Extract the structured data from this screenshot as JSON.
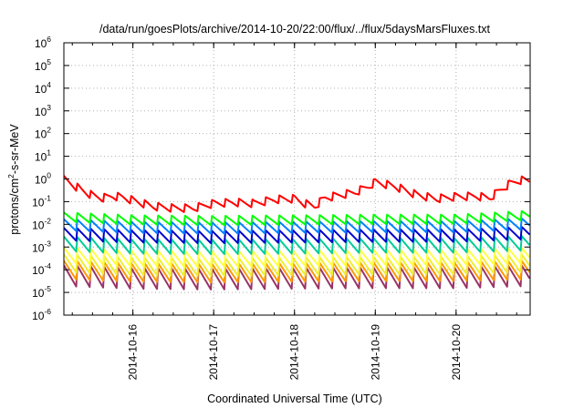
{
  "chart_data": {
    "type": "line",
    "title": "/data/run/goesPlots/archive/2014-10-20/22:00/flux/../flux/5daysMarsFluxes.txt",
    "xlabel": "Coordinated Universal Time (UTC)",
    "ylabel": "protons/cm²-s-sr-MeV",
    "ylabel_parts": [
      "protons/cm",
      "2",
      "-s-sr-MeV"
    ],
    "yscale": "log",
    "ylim": [
      1e-06,
      1000000.0
    ],
    "y_tick_exponents": [
      -6,
      -5,
      -4,
      -3,
      -2,
      -1,
      0,
      1,
      2,
      3,
      4,
      5,
      6
    ],
    "y_tick_base": "10",
    "xlim": [
      "2014-10-15 03:30",
      "2014-10-20 22:00"
    ],
    "x_ticks": [
      "2014-10-16",
      "2014-10-17",
      "2014-10-18",
      "2014-10-19",
      "2014-10-20"
    ],
    "grid": true,
    "sawtooth_period_hours": 4,
    "series": [
      {
        "color": "#ff0000",
        "points": [
          [
            "2014-10-15 03:30",
            0.9
          ],
          [
            "2014-10-15 06:00",
            0.55
          ],
          [
            "2014-10-15 09:00",
            0.3
          ],
          [
            "2014-10-15 12:00",
            0.18
          ],
          [
            "2014-10-15 15:00",
            0.14
          ],
          [
            "2014-10-15 18:00",
            0.17
          ],
          [
            "2014-10-15 21:00",
            0.15
          ],
          [
            "2014-10-16 00:00",
            0.11
          ],
          [
            "2014-10-16 03:00",
            0.08
          ],
          [
            "2014-10-16 06:00",
            0.06
          ],
          [
            "2014-10-16 12:00",
            0.05
          ],
          [
            "2014-10-16 18:00",
            0.05
          ],
          [
            "2014-10-17 00:00",
            0.08
          ],
          [
            "2014-10-17 06:00",
            0.09
          ],
          [
            "2014-10-17 12:00",
            0.08
          ],
          [
            "2014-10-17 18:00",
            0.12
          ],
          [
            "2014-10-18 00:00",
            0.13
          ],
          [
            "2014-10-18 03:00",
            0.08
          ],
          [
            "2014-10-18 06:00",
            0.06
          ],
          [
            "2014-10-18 09:00",
            0.14
          ],
          [
            "2014-10-18 18:00",
            0.25
          ],
          [
            "2014-10-18 22:00",
            0.45
          ],
          [
            "2014-10-19 00:00",
            0.7
          ],
          [
            "2014-10-19 06:00",
            0.45
          ],
          [
            "2014-10-19 12:00",
            0.2
          ],
          [
            "2014-10-19 18:00",
            0.13
          ],
          [
            "2014-10-20 00:00",
            0.16
          ],
          [
            "2014-10-20 06:00",
            0.17
          ],
          [
            "2014-10-20 10:00",
            0.14
          ],
          [
            "2014-10-20 13:00",
            0.3
          ],
          [
            "2014-10-20 16:00",
            0.6
          ],
          [
            "2014-10-20 19:00",
            0.85
          ],
          [
            "2014-10-20 22:00",
            0.8
          ]
        ],
        "sawtooth_amplitude": 0.38
      },
      {
        "color": "#00ff00",
        "points": [
          [
            "2014-10-15 03:30",
            0.02
          ],
          [
            "2014-10-16 00:00",
            0.015
          ],
          [
            "2014-10-17 00:00",
            0.014
          ],
          [
            "2014-10-18 00:00",
            0.015
          ],
          [
            "2014-10-19 00:00",
            0.016
          ],
          [
            "2014-10-20 00:00",
            0.016
          ],
          [
            "2014-10-20 22:00",
            0.024
          ]
        ],
        "sawtooth_amplitude": 0.45
      },
      {
        "color": "#0080ff",
        "points": [
          [
            "2014-10-15 03:30",
            0.009
          ],
          [
            "2014-10-16 00:00",
            0.007
          ],
          [
            "2014-10-17 00:00",
            0.0065
          ],
          [
            "2014-10-18 00:00",
            0.007
          ],
          [
            "2014-10-19 00:00",
            0.0075
          ],
          [
            "2014-10-20 00:00",
            0.0075
          ],
          [
            "2014-10-20 22:00",
            0.01
          ]
        ],
        "sawtooth_amplitude": 0.55
      },
      {
        "color": "#0000cc",
        "points": [
          [
            "2014-10-15 03:30",
            0.0035
          ],
          [
            "2014-10-16 00:00",
            0.0028
          ],
          [
            "2014-10-17 00:00",
            0.0026
          ],
          [
            "2014-10-18 00:00",
            0.0028
          ],
          [
            "2014-10-19 00:00",
            0.003
          ],
          [
            "2014-10-20 00:00",
            0.003
          ],
          [
            "2014-10-20 22:00",
            0.004
          ]
        ],
        "sawtooth_amplitude": 0.6
      },
      {
        "color": "#00cc99",
        "points": [
          [
            "2014-10-15 03:30",
            0.0013
          ],
          [
            "2014-10-16 00:00",
            0.001
          ],
          [
            "2014-10-17 00:00",
            0.00095
          ],
          [
            "2014-10-18 00:00",
            0.001
          ],
          [
            "2014-10-19 00:00",
            0.0011
          ],
          [
            "2014-10-20 00:00",
            0.0011
          ],
          [
            "2014-10-20 22:00",
            0.0014
          ]
        ],
        "sawtooth_amplitude": 0.7
      },
      {
        "color": "#ffff44",
        "points": [
          [
            "2014-10-15 03:30",
            0.0004
          ],
          [
            "2014-10-16 00:00",
            0.0003
          ],
          [
            "2014-10-17 00:00",
            0.00028
          ],
          [
            "2014-10-18 00:00",
            0.0003
          ],
          [
            "2014-10-19 00:00",
            0.00032
          ],
          [
            "2014-10-20 00:00",
            0.00032
          ],
          [
            "2014-10-20 22:00",
            0.0004
          ]
        ],
        "sawtooth_amplitude": 0.75
      },
      {
        "color": "#eeee33",
        "points": [
          [
            "2014-10-15 03:30",
            0.00018
          ],
          [
            "2014-10-16 00:00",
            0.00013
          ],
          [
            "2014-10-17 00:00",
            0.00012
          ],
          [
            "2014-10-18 00:00",
            0.00013
          ],
          [
            "2014-10-19 00:00",
            0.00014
          ],
          [
            "2014-10-20 00:00",
            0.00014
          ],
          [
            "2014-10-20 22:00",
            0.00018
          ]
        ],
        "sawtooth_amplitude": 0.85
      },
      {
        "color": "#ff9900",
        "points": [
          [
            "2014-10-15 03:30",
            9e-05
          ],
          [
            "2014-10-16 00:00",
            7e-05
          ],
          [
            "2014-10-17 00:00",
            6.5e-05
          ],
          [
            "2014-10-18 00:00",
            7e-05
          ],
          [
            "2014-10-19 00:00",
            7.5e-05
          ],
          [
            "2014-10-20 00:00",
            7.5e-05
          ],
          [
            "2014-10-20 22:00",
            9e-05
          ]
        ],
        "sawtooth_amplitude": 0.9
      },
      {
        "color": "#993366",
        "points": [
          [
            "2014-10-15 03:30",
            5e-05
          ],
          [
            "2014-10-16 00:00",
            3.8e-05
          ],
          [
            "2014-10-17 00:00",
            3.5e-05
          ],
          [
            "2014-10-18 00:00",
            3.8e-05
          ],
          [
            "2014-10-19 00:00",
            4e-05
          ],
          [
            "2014-10-20 00:00",
            4e-05
          ],
          [
            "2014-10-20 22:00",
            5e-05
          ]
        ],
        "sawtooth_amplitude": 1.0
      }
    ]
  }
}
